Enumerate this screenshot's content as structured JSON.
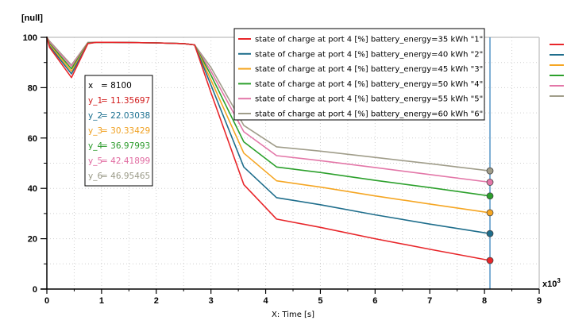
{
  "chart_data": {
    "type": "line",
    "ylabel": "[null]",
    "xlabel": "X: Time [s]",
    "x_multiplier": "x10",
    "x_multiplier_exp": "3",
    "xlim": [
      0,
      9
    ],
    "ylim": [
      0,
      100
    ],
    "x_ticks": [
      "0",
      "1",
      "2",
      "3",
      "4",
      "5",
      "6",
      "7",
      "8",
      "9"
    ],
    "y_ticks": [
      "0",
      "20",
      "40",
      "60",
      "80",
      "100"
    ],
    "grid": true,
    "legend_position": "top-right",
    "cursor": {
      "x_label": "x",
      "x_value": "= 8100",
      "x_data": 8.1,
      "readouts": [
        {
          "label": "y_1",
          "value": "= 11.35697"
        },
        {
          "label": "y_2",
          "value": "= 22.03038"
        },
        {
          "label": "y_3",
          "value": "= 30.33429"
        },
        {
          "label": "y_4",
          "value": "= 36.97993"
        },
        {
          "label": "y_5",
          "value": "= 42.41899"
        },
        {
          "label": "y_6",
          "value": "= 46.95465"
        }
      ]
    },
    "series": [
      {
        "name": "state of charge at port 4 [%] battery_energy=35 kWh \"1\"",
        "color": "#e8262a",
        "readout_color": "#d11a1a",
        "x": [
          0,
          0.05,
          0.45,
          0.75,
          0.9,
          1.2,
          2.0,
          2.5,
          2.7,
          3.0,
          3.6,
          4.2,
          5.0,
          6.0,
          7.0,
          8.1
        ],
        "y": [
          100,
          96,
          84,
          97.5,
          98,
          98,
          97.8,
          97.5,
          97,
          78,
          41.5,
          27.8,
          24.5,
          20,
          15.8,
          11.36
        ]
      },
      {
        "name": "state of charge at port 4 [%] battery_energy=40 kWh \"2\"",
        "color": "#1f6e8c",
        "readout_color": "#1a6f8f",
        "x": [
          0,
          0.05,
          0.45,
          0.75,
          0.9,
          1.2,
          2.0,
          2.5,
          2.7,
          3.0,
          3.6,
          4.2,
          5.0,
          6.0,
          7.0,
          8.1
        ],
        "y": [
          100,
          96.5,
          85.5,
          97.6,
          98,
          98,
          97.8,
          97.5,
          97,
          81,
          48.5,
          36.3,
          33.5,
          29.5,
          25.8,
          22.03
        ]
      },
      {
        "name": "state of charge at port 4 [%] battery_energy=45 kWh \"3\"",
        "color": "#f5a623",
        "readout_color": "#f0a020",
        "x": [
          0,
          0.05,
          0.45,
          0.75,
          0.9,
          1.2,
          2.0,
          2.5,
          2.7,
          3.0,
          3.6,
          4.2,
          5.0,
          6.0,
          7.0,
          8.1
        ],
        "y": [
          100,
          97,
          86.5,
          97.7,
          98,
          98,
          97.8,
          97.5,
          97,
          83,
          54,
          43,
          40.5,
          37,
          33.8,
          30.33
        ]
      },
      {
        "name": "state of charge at port 4 [%] battery_energy=50 kWh \"4\"",
        "color": "#2ca02c",
        "readout_color": "#2a9a2a",
        "x": [
          0,
          0.05,
          0.45,
          0.75,
          0.9,
          1.2,
          2.0,
          2.5,
          2.7,
          3.0,
          3.6,
          4.2,
          5.0,
          6.0,
          7.0,
          8.1
        ],
        "y": [
          100,
          97.5,
          87.5,
          97.8,
          98,
          98,
          97.8,
          97.5,
          97,
          85,
          58.5,
          48.5,
          46.3,
          43.2,
          40.3,
          36.98
        ]
      },
      {
        "name": "state of charge at port 4 [%] battery_energy=55 kWh \"5\"",
        "color": "#e377a8",
        "readout_color": "#e06aa0",
        "x": [
          0,
          0.05,
          0.45,
          0.75,
          0.9,
          1.2,
          2.0,
          2.5,
          2.7,
          3.0,
          3.6,
          4.2,
          5.0,
          6.0,
          7.0,
          8.1
        ],
        "y": [
          100,
          98,
          88.5,
          97.9,
          98,
          98,
          97.8,
          97.5,
          97,
          86.5,
          62.5,
          53,
          51,
          48.3,
          45.5,
          42.42
        ]
      },
      {
        "name": "state of charge at port 4 [%] battery_energy=60 kWh \"6\"",
        "color": "#a09d8a",
        "readout_color": "#9a9a88",
        "x": [
          0,
          0.05,
          0.45,
          0.75,
          0.9,
          1.2,
          2.0,
          2.5,
          2.7,
          3.0,
          3.6,
          4.2,
          5.0,
          6.0,
          7.0,
          8.1
        ],
        "y": [
          100,
          98.5,
          89,
          98,
          98,
          98,
          97.8,
          97.5,
          97,
          88,
          65,
          56.5,
          54.8,
          52.3,
          49.8,
          46.95
        ]
      }
    ]
  }
}
